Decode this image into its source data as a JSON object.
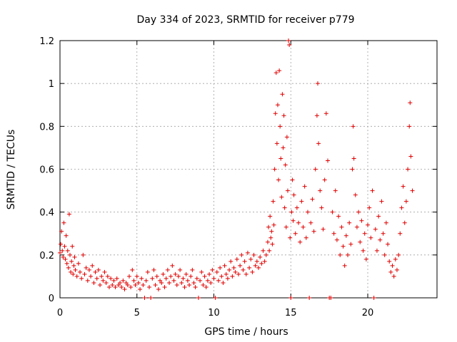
{
  "chart_data": {
    "type": "scatter",
    "title": "Day 334 of 2023, SRMTID for receiver p779",
    "xlabel": "GPS time / hours",
    "ylabel": "SRMTID / TECUs",
    "xlim": [
      0,
      24.5
    ],
    "ylim": [
      0,
      1.2
    ],
    "xticks": [
      0,
      5,
      10,
      15,
      20
    ],
    "xtick_labels": [
      "0",
      "5",
      "10",
      "15",
      "20"
    ],
    "yticks": [
      0,
      0.2,
      0.4,
      0.6,
      0.8,
      1.0,
      1.2
    ],
    "ytick_labels": [
      "0",
      "0.2",
      "0.4",
      "0.6",
      "0.8",
      "1",
      "1.2"
    ],
    "grid": true,
    "marker": "+",
    "series": [
      {
        "name": "SRMTID",
        "color": "#e00000",
        "points": [
          [
            0.0,
            0.21
          ],
          [
            0.05,
            0.25
          ],
          [
            0.1,
            0.31
          ],
          [
            0.15,
            0.22
          ],
          [
            0.2,
            0.19
          ],
          [
            0.25,
            0.35
          ],
          [
            0.3,
            0.24
          ],
          [
            0.35,
            0.18
          ],
          [
            0.4,
            0.29
          ],
          [
            0.45,
            0.16
          ],
          [
            0.5,
            0.22
          ],
          [
            0.55,
            0.14
          ],
          [
            0.6,
            0.39
          ],
          [
            0.65,
            0.2
          ],
          [
            0.7,
            0.12
          ],
          [
            0.75,
            0.17
          ],
          [
            0.8,
            0.24
          ],
          [
            0.85,
            0.11
          ],
          [
            0.9,
            0.15
          ],
          [
            0.95,
            0.19
          ],
          [
            1.0,
            0.13
          ],
          [
            1.1,
            0.1
          ],
          [
            1.2,
            0.16
          ],
          [
            1.3,
            0.12
          ],
          [
            1.4,
            0.09
          ],
          [
            1.5,
            0.2
          ],
          [
            1.6,
            0.11
          ],
          [
            1.7,
            0.14
          ],
          [
            1.8,
            0.08
          ],
          [
            1.9,
            0.13
          ],
          [
            2.0,
            0.1
          ],
          [
            2.1,
            0.15
          ],
          [
            2.2,
            0.07
          ],
          [
            2.3,
            0.12
          ],
          [
            2.4,
            0.09
          ],
          [
            2.5,
            0.13
          ],
          [
            2.6,
            0.06
          ],
          [
            2.7,
            0.1
          ],
          [
            2.8,
            0.08
          ],
          [
            2.9,
            0.12
          ],
          [
            3.0,
            0.07
          ],
          [
            3.1,
            0.1
          ],
          [
            3.2,
            0.05
          ],
          [
            3.3,
            0.09
          ],
          [
            3.4,
            0.06
          ],
          [
            3.5,
            0.08
          ],
          [
            3.6,
            0.05
          ],
          [
            3.7,
            0.09
          ],
          [
            3.8,
            0.06
          ],
          [
            3.9,
            0.07
          ],
          [
            4.0,
            0.05
          ],
          [
            4.1,
            0.08
          ],
          [
            4.2,
            0.04
          ],
          [
            4.3,
            0.07
          ],
          [
            4.4,
            0.06
          ],
          [
            4.5,
            0.1
          ],
          [
            4.6,
            0.05
          ],
          [
            4.7,
            0.13
          ],
          [
            4.8,
            0.08
          ],
          [
            4.9,
            0.06
          ],
          [
            5.0,
            0.1
          ],
          [
            5.1,
            0.07
          ],
          [
            5.2,
            0.04
          ],
          [
            5.3,
            0.09
          ],
          [
            5.4,
            0.06
          ],
          [
            5.5,
            0.0
          ],
          [
            5.6,
            0.08
          ],
          [
            5.7,
            0.12
          ],
          [
            5.8,
            0.05
          ],
          [
            5.9,
            0.0
          ],
          [
            6.0,
            0.09
          ],
          [
            6.1,
            0.13
          ],
          [
            6.2,
            0.06
          ],
          [
            6.3,
            0.1
          ],
          [
            6.4,
            0.04
          ],
          [
            6.5,
            0.08
          ],
          [
            6.6,
            0.07
          ],
          [
            6.7,
            0.11
          ],
          [
            6.8,
            0.05
          ],
          [
            6.9,
            0.09
          ],
          [
            7.0,
            0.13
          ],
          [
            7.1,
            0.07
          ],
          [
            7.2,
            0.1
          ],
          [
            7.3,
            0.15
          ],
          [
            7.4,
            0.08
          ],
          [
            7.5,
            0.11
          ],
          [
            7.6,
            0.06
          ],
          [
            7.7,
            0.1
          ],
          [
            7.8,
            0.13
          ],
          [
            7.9,
            0.07
          ],
          [
            8.0,
            0.09
          ],
          [
            8.1,
            0.05
          ],
          [
            8.2,
            0.11
          ],
          [
            8.3,
            0.08
          ],
          [
            8.4,
            0.06
          ],
          [
            8.5,
            0.1
          ],
          [
            8.6,
            0.13
          ],
          [
            8.7,
            0.07
          ],
          [
            8.8,
            0.05
          ],
          [
            8.9,
            0.09
          ],
          [
            9.0,
            0.0
          ],
          [
            9.1,
            0.08
          ],
          [
            9.2,
            0.12
          ],
          [
            9.3,
            0.06
          ],
          [
            9.4,
            0.1
          ],
          [
            9.5,
            0.05
          ],
          [
            9.6,
            0.08
          ],
          [
            9.7,
            0.11
          ],
          [
            9.8,
            0.07
          ],
          [
            9.9,
            0.13
          ],
          [
            10.0,
            0.09
          ],
          [
            10.1,
            0.0
          ],
          [
            10.2,
            0.12
          ],
          [
            10.3,
            0.08
          ],
          [
            10.4,
            0.14
          ],
          [
            10.5,
            0.1
          ],
          [
            10.6,
            0.07
          ],
          [
            10.7,
            0.15
          ],
          [
            10.8,
            0.11
          ],
          [
            10.9,
            0.09
          ],
          [
            11.0,
            0.13
          ],
          [
            11.1,
            0.17
          ],
          [
            11.2,
            0.1
          ],
          [
            11.3,
            0.14
          ],
          [
            11.4,
            0.12
          ],
          [
            11.5,
            0.18
          ],
          [
            11.6,
            0.11
          ],
          [
            11.7,
            0.15
          ],
          [
            11.8,
            0.2
          ],
          [
            11.9,
            0.13
          ],
          [
            12.0,
            0.17
          ],
          [
            12.1,
            0.11
          ],
          [
            12.2,
            0.21
          ],
          [
            12.3,
            0.14
          ],
          [
            12.4,
            0.18
          ],
          [
            12.5,
            0.12
          ],
          [
            12.6,
            0.2
          ],
          [
            12.7,
            0.15
          ],
          [
            12.8,
            0.17
          ],
          [
            12.9,
            0.14
          ],
          [
            13.0,
            0.19
          ],
          [
            13.1,
            0.16
          ],
          [
            13.2,
            0.22
          ],
          [
            13.3,
            0.17
          ],
          [
            13.4,
            0.2
          ],
          [
            13.5,
            0.26
          ],
          [
            13.55,
            0.33
          ],
          [
            13.6,
            0.22
          ],
          [
            13.65,
            0.38
          ],
          [
            13.7,
            0.28
          ],
          [
            13.75,
            0.31
          ],
          [
            13.8,
            0.25
          ],
          [
            13.85,
            0.45
          ],
          [
            13.9,
            0.34
          ],
          [
            13.95,
            0.6
          ],
          [
            14.0,
            0.86
          ],
          [
            14.05,
            1.05
          ],
          [
            14.1,
            0.72
          ],
          [
            14.15,
            0.9
          ],
          [
            14.2,
            0.55
          ],
          [
            14.25,
            1.06
          ],
          [
            14.3,
            0.8
          ],
          [
            14.35,
            0.65
          ],
          [
            14.4,
            0.47
          ],
          [
            14.45,
            0.95
          ],
          [
            14.5,
            0.7
          ],
          [
            14.55,
            0.85
          ],
          [
            14.6,
            0.42
          ],
          [
            14.65,
            0.62
          ],
          [
            14.7,
            0.33
          ],
          [
            14.75,
            0.75
          ],
          [
            14.8,
            0.5
          ],
          [
            14.85,
            1.2
          ],
          [
            14.9,
            1.18
          ],
          [
            14.95,
            0.28
          ],
          [
            15.0,
            0.0
          ],
          [
            15.05,
            0.4
          ],
          [
            15.1,
            0.55
          ],
          [
            15.15,
            0.36
          ],
          [
            15.2,
            0.48
          ],
          [
            15.3,
            0.3
          ],
          [
            15.4,
            0.42
          ],
          [
            15.5,
            0.35
          ],
          [
            15.6,
            0.26
          ],
          [
            15.7,
            0.45
          ],
          [
            15.8,
            0.33
          ],
          [
            15.9,
            0.52
          ],
          [
            16.0,
            0.28
          ],
          [
            16.1,
            0.4
          ],
          [
            16.2,
            0.0
          ],
          [
            16.3,
            0.35
          ],
          [
            16.4,
            0.46
          ],
          [
            16.5,
            0.31
          ],
          [
            16.6,
            0.6
          ],
          [
            16.7,
            0.85
          ],
          [
            16.75,
            1.0
          ],
          [
            16.8,
            0.72
          ],
          [
            16.9,
            0.5
          ],
          [
            17.0,
            0.42
          ],
          [
            17.1,
            0.32
          ],
          [
            17.2,
            0.55
          ],
          [
            17.3,
            0.86
          ],
          [
            17.4,
            0.64
          ],
          [
            17.5,
            0.0
          ],
          [
            17.6,
            0.0
          ],
          [
            17.7,
            0.4
          ],
          [
            17.8,
            0.3
          ],
          [
            17.9,
            0.5
          ],
          [
            18.0,
            0.27
          ],
          [
            18.1,
            0.38
          ],
          [
            18.2,
            0.2
          ],
          [
            18.3,
            0.33
          ],
          [
            18.4,
            0.24
          ],
          [
            18.5,
            0.15
          ],
          [
            18.6,
            0.29
          ],
          [
            18.7,
            0.2
          ],
          [
            18.8,
            0.35
          ],
          [
            18.9,
            0.25
          ],
          [
            19.0,
            0.6
          ],
          [
            19.05,
            0.8
          ],
          [
            19.1,
            0.65
          ],
          [
            19.2,
            0.48
          ],
          [
            19.3,
            0.33
          ],
          [
            19.4,
            0.4
          ],
          [
            19.5,
            0.26
          ],
          [
            19.6,
            0.36
          ],
          [
            19.7,
            0.22
          ],
          [
            19.8,
            0.3
          ],
          [
            19.9,
            0.18
          ],
          [
            20.0,
            0.34
          ],
          [
            20.1,
            0.42
          ],
          [
            20.2,
            0.28
          ],
          [
            20.3,
            0.5
          ],
          [
            20.4,
            0.0
          ],
          [
            20.5,
            0.32
          ],
          [
            20.6,
            0.22
          ],
          [
            20.7,
            0.38
          ],
          [
            20.8,
            0.27
          ],
          [
            20.9,
            0.45
          ],
          [
            21.0,
            0.3
          ],
          [
            21.1,
            0.2
          ],
          [
            21.2,
            0.35
          ],
          [
            21.3,
            0.25
          ],
          [
            21.4,
            0.17
          ],
          [
            21.5,
            0.12
          ],
          [
            21.6,
            0.15
          ],
          [
            21.7,
            0.1
          ],
          [
            21.8,
            0.18
          ],
          [
            21.9,
            0.13
          ],
          [
            22.0,
            0.2
          ],
          [
            22.1,
            0.3
          ],
          [
            22.2,
            0.42
          ],
          [
            22.3,
            0.52
          ],
          [
            22.4,
            0.35
          ],
          [
            22.5,
            0.45
          ],
          [
            22.6,
            0.6
          ],
          [
            22.7,
            0.8
          ],
          [
            22.75,
            0.91
          ],
          [
            22.8,
            0.66
          ],
          [
            22.9,
            0.5
          ]
        ]
      }
    ]
  }
}
